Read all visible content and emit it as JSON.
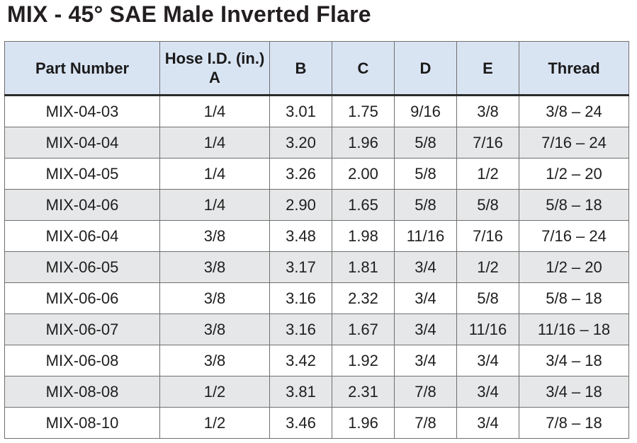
{
  "title": "MIX - 45° SAE Male Inverted Flare",
  "table": {
    "headers": {
      "part_number": "Part Number",
      "hose_id_line1": "Hose I.D. (in.)",
      "hose_id_line2": "A",
      "b": "B",
      "c": "C",
      "d": "D",
      "e": "E",
      "thread": "Thread"
    },
    "rows": [
      {
        "part": "MIX-04-03",
        "hose": "1/4",
        "b": "3.01",
        "c": "1.75",
        "d": "9/16",
        "e": "3/8",
        "thread": "3/8 – 24"
      },
      {
        "part": "MIX-04-04",
        "hose": "1/4",
        "b": "3.20",
        "c": "1.96",
        "d": "5/8",
        "e": "7/16",
        "thread": "7/16 – 24"
      },
      {
        "part": "MIX-04-05",
        "hose": "1/4",
        "b": "3.26",
        "c": "2.00",
        "d": "5/8",
        "e": "1/2",
        "thread": "1/2 – 20"
      },
      {
        "part": "MIX-04-06",
        "hose": "1/4",
        "b": "2.90",
        "c": "1.65",
        "d": "5/8",
        "e": "5/8",
        "thread": "5/8 – 18"
      },
      {
        "part": "MIX-06-04",
        "hose": "3/8",
        "b": "3.48",
        "c": "1.98",
        "d": "11/16",
        "e": "7/16",
        "thread": "7/16 – 24"
      },
      {
        "part": "MIX-06-05",
        "hose": "3/8",
        "b": "3.17",
        "c": "1.81",
        "d": "3/4",
        "e": "1/2",
        "thread": "1/2 – 20"
      },
      {
        "part": "MIX-06-06",
        "hose": "3/8",
        "b": "3.16",
        "c": "2.32",
        "d": "3/4",
        "e": "5/8",
        "thread": "5/8 – 18"
      },
      {
        "part": "MIX-06-07",
        "hose": "3/8",
        "b": "3.16",
        "c": "1.67",
        "d": "3/4",
        "e": "11/16",
        "thread": "11/16 – 18"
      },
      {
        "part": "MIX-06-08",
        "hose": "3/8",
        "b": "3.42",
        "c": "1.92",
        "d": "3/4",
        "e": "3/4",
        "thread": "3/4 – 18"
      },
      {
        "part": "MIX-08-08",
        "hose": "1/2",
        "b": "3.81",
        "c": "2.31",
        "d": "7/8",
        "e": "3/4",
        "thread": "3/4 – 18"
      },
      {
        "part": "MIX-08-10",
        "hose": "1/2",
        "b": "3.46",
        "c": "1.96",
        "d": "7/8",
        "e": "3/4",
        "thread": "7/8 – 18"
      }
    ]
  }
}
